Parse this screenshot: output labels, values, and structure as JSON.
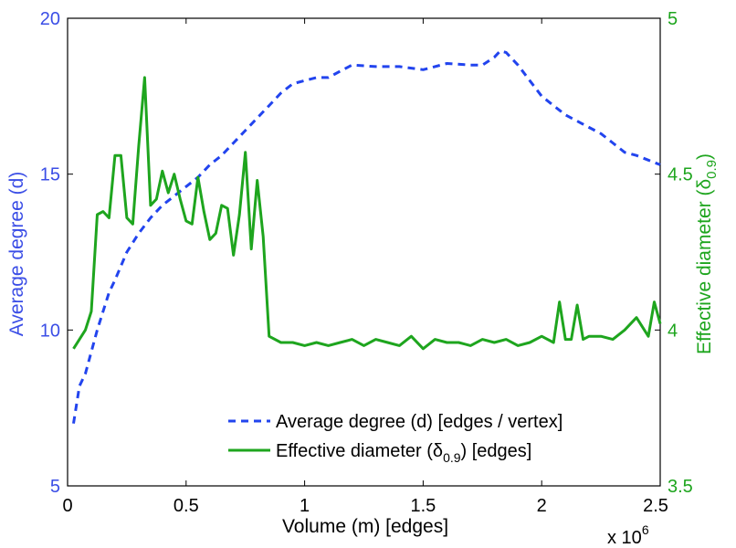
{
  "chart_data": {
    "type": "line",
    "x_label": "Volume (m) [edges]",
    "x_multiplier": "x 10",
    "x_multiplier_exp": "6",
    "xlim": [
      0,
      2500000
    ],
    "x_ticks": [
      0,
      500000,
      1000000,
      1500000,
      2000000,
      2500000
    ],
    "x_tick_labels": [
      "0",
      "0.5",
      "1",
      "1.5",
      "2",
      "2.5"
    ],
    "y_left": {
      "label": "Average degree (d)",
      "lim": [
        5,
        20
      ],
      "ticks": [
        5,
        10,
        15,
        20
      ],
      "tick_labels": [
        "5",
        "10",
        "15",
        "20"
      ],
      "color": "#3b4ee6"
    },
    "y_right": {
      "label_main": "Effective diameter (δ",
      "label_sub": "0.9",
      "label_end": ")",
      "lim": [
        3.5,
        5
      ],
      "ticks": [
        3.5,
        4,
        4.5,
        5
      ],
      "tick_labels": [
        "3.5",
        "4",
        "4.5",
        "5"
      ],
      "color": "#1ea51e"
    },
    "series": [
      {
        "name": "Average degree (d) [edges / vertex]",
        "axis": "left",
        "style": "dashed",
        "color": "#2244ee",
        "x": [
          25000,
          50000,
          75000,
          100000,
          125000,
          150000,
          175000,
          200000,
          250000,
          300000,
          350000,
          400000,
          450000,
          500000,
          550000,
          600000,
          650000,
          700000,
          750000,
          800000,
          850000,
          900000,
          950000,
          1000000,
          1050000,
          1100000,
          1150000,
          1200000,
          1300000,
          1400000,
          1500000,
          1600000,
          1700000,
          1750000,
          1800000,
          1825000,
          1850000,
          1900000,
          1950000,
          2000000,
          2050000,
          2100000,
          2150000,
          2200000,
          2250000,
          2300000,
          2350000,
          2400000,
          2450000,
          2500000
        ],
        "values": [
          7.0,
          8.2,
          8.6,
          9.3,
          10.0,
          10.6,
          11.2,
          11.6,
          12.5,
          13.1,
          13.6,
          14.0,
          14.3,
          14.6,
          14.9,
          15.3,
          15.6,
          16.0,
          16.4,
          16.8,
          17.2,
          17.6,
          17.9,
          18.0,
          18.1,
          18.1,
          18.3,
          18.5,
          18.45,
          18.45,
          18.35,
          18.55,
          18.5,
          18.5,
          18.75,
          18.95,
          18.9,
          18.5,
          18.0,
          17.5,
          17.2,
          16.9,
          16.7,
          16.5,
          16.3,
          16.0,
          15.7,
          15.6,
          15.45,
          15.3
        ]
      },
      {
        "name": "Effective diameter (δ0.9) [edges]",
        "axis": "right",
        "style": "solid",
        "color": "#1ea51e",
        "x": [
          25000,
          50000,
          75000,
          100000,
          125000,
          150000,
          175000,
          200000,
          225000,
          250000,
          275000,
          300000,
          325000,
          350000,
          375000,
          400000,
          425000,
          450000,
          475000,
          500000,
          525000,
          550000,
          575000,
          600000,
          625000,
          650000,
          675000,
          700000,
          725000,
          750000,
          775000,
          800000,
          825000,
          850000,
          900000,
          950000,
          1000000,
          1050000,
          1100000,
          1150000,
          1200000,
          1250000,
          1300000,
          1350000,
          1400000,
          1450000,
          1500000,
          1550000,
          1600000,
          1650000,
          1700000,
          1750000,
          1800000,
          1850000,
          1900000,
          1950000,
          2000000,
          2050000,
          2075000,
          2100000,
          2125000,
          2150000,
          2175000,
          2200000,
          2250000,
          2300000,
          2350000,
          2400000,
          2450000,
          2475000,
          2500000
        ],
        "values": [
          3.94,
          3.97,
          4.0,
          4.06,
          4.37,
          4.38,
          4.36,
          4.56,
          4.56,
          4.36,
          4.34,
          4.59,
          4.81,
          4.4,
          4.42,
          4.51,
          4.44,
          4.5,
          4.42,
          4.35,
          4.34,
          4.49,
          4.38,
          4.29,
          4.31,
          4.4,
          4.39,
          4.24,
          4.37,
          4.57,
          4.26,
          4.48,
          4.3,
          3.98,
          3.96,
          3.96,
          3.95,
          3.96,
          3.95,
          3.96,
          3.97,
          3.95,
          3.97,
          3.96,
          3.95,
          3.98,
          3.94,
          3.97,
          3.96,
          3.96,
          3.95,
          3.97,
          3.96,
          3.97,
          3.95,
          3.96,
          3.98,
          3.96,
          4.09,
          3.97,
          3.97,
          4.08,
          3.97,
          3.98,
          3.98,
          3.97,
          4.0,
          4.04,
          3.98,
          4.09,
          4.02
        ]
      }
    ],
    "legend": {
      "position": "bottom-right",
      "entries": [
        {
          "label": "Average degree (d) [edges / vertex]"
        },
        {
          "label_main": "Effective diameter (δ",
          "label_sub": "0.9",
          "label_end": ") [edges]"
        }
      ]
    }
  }
}
